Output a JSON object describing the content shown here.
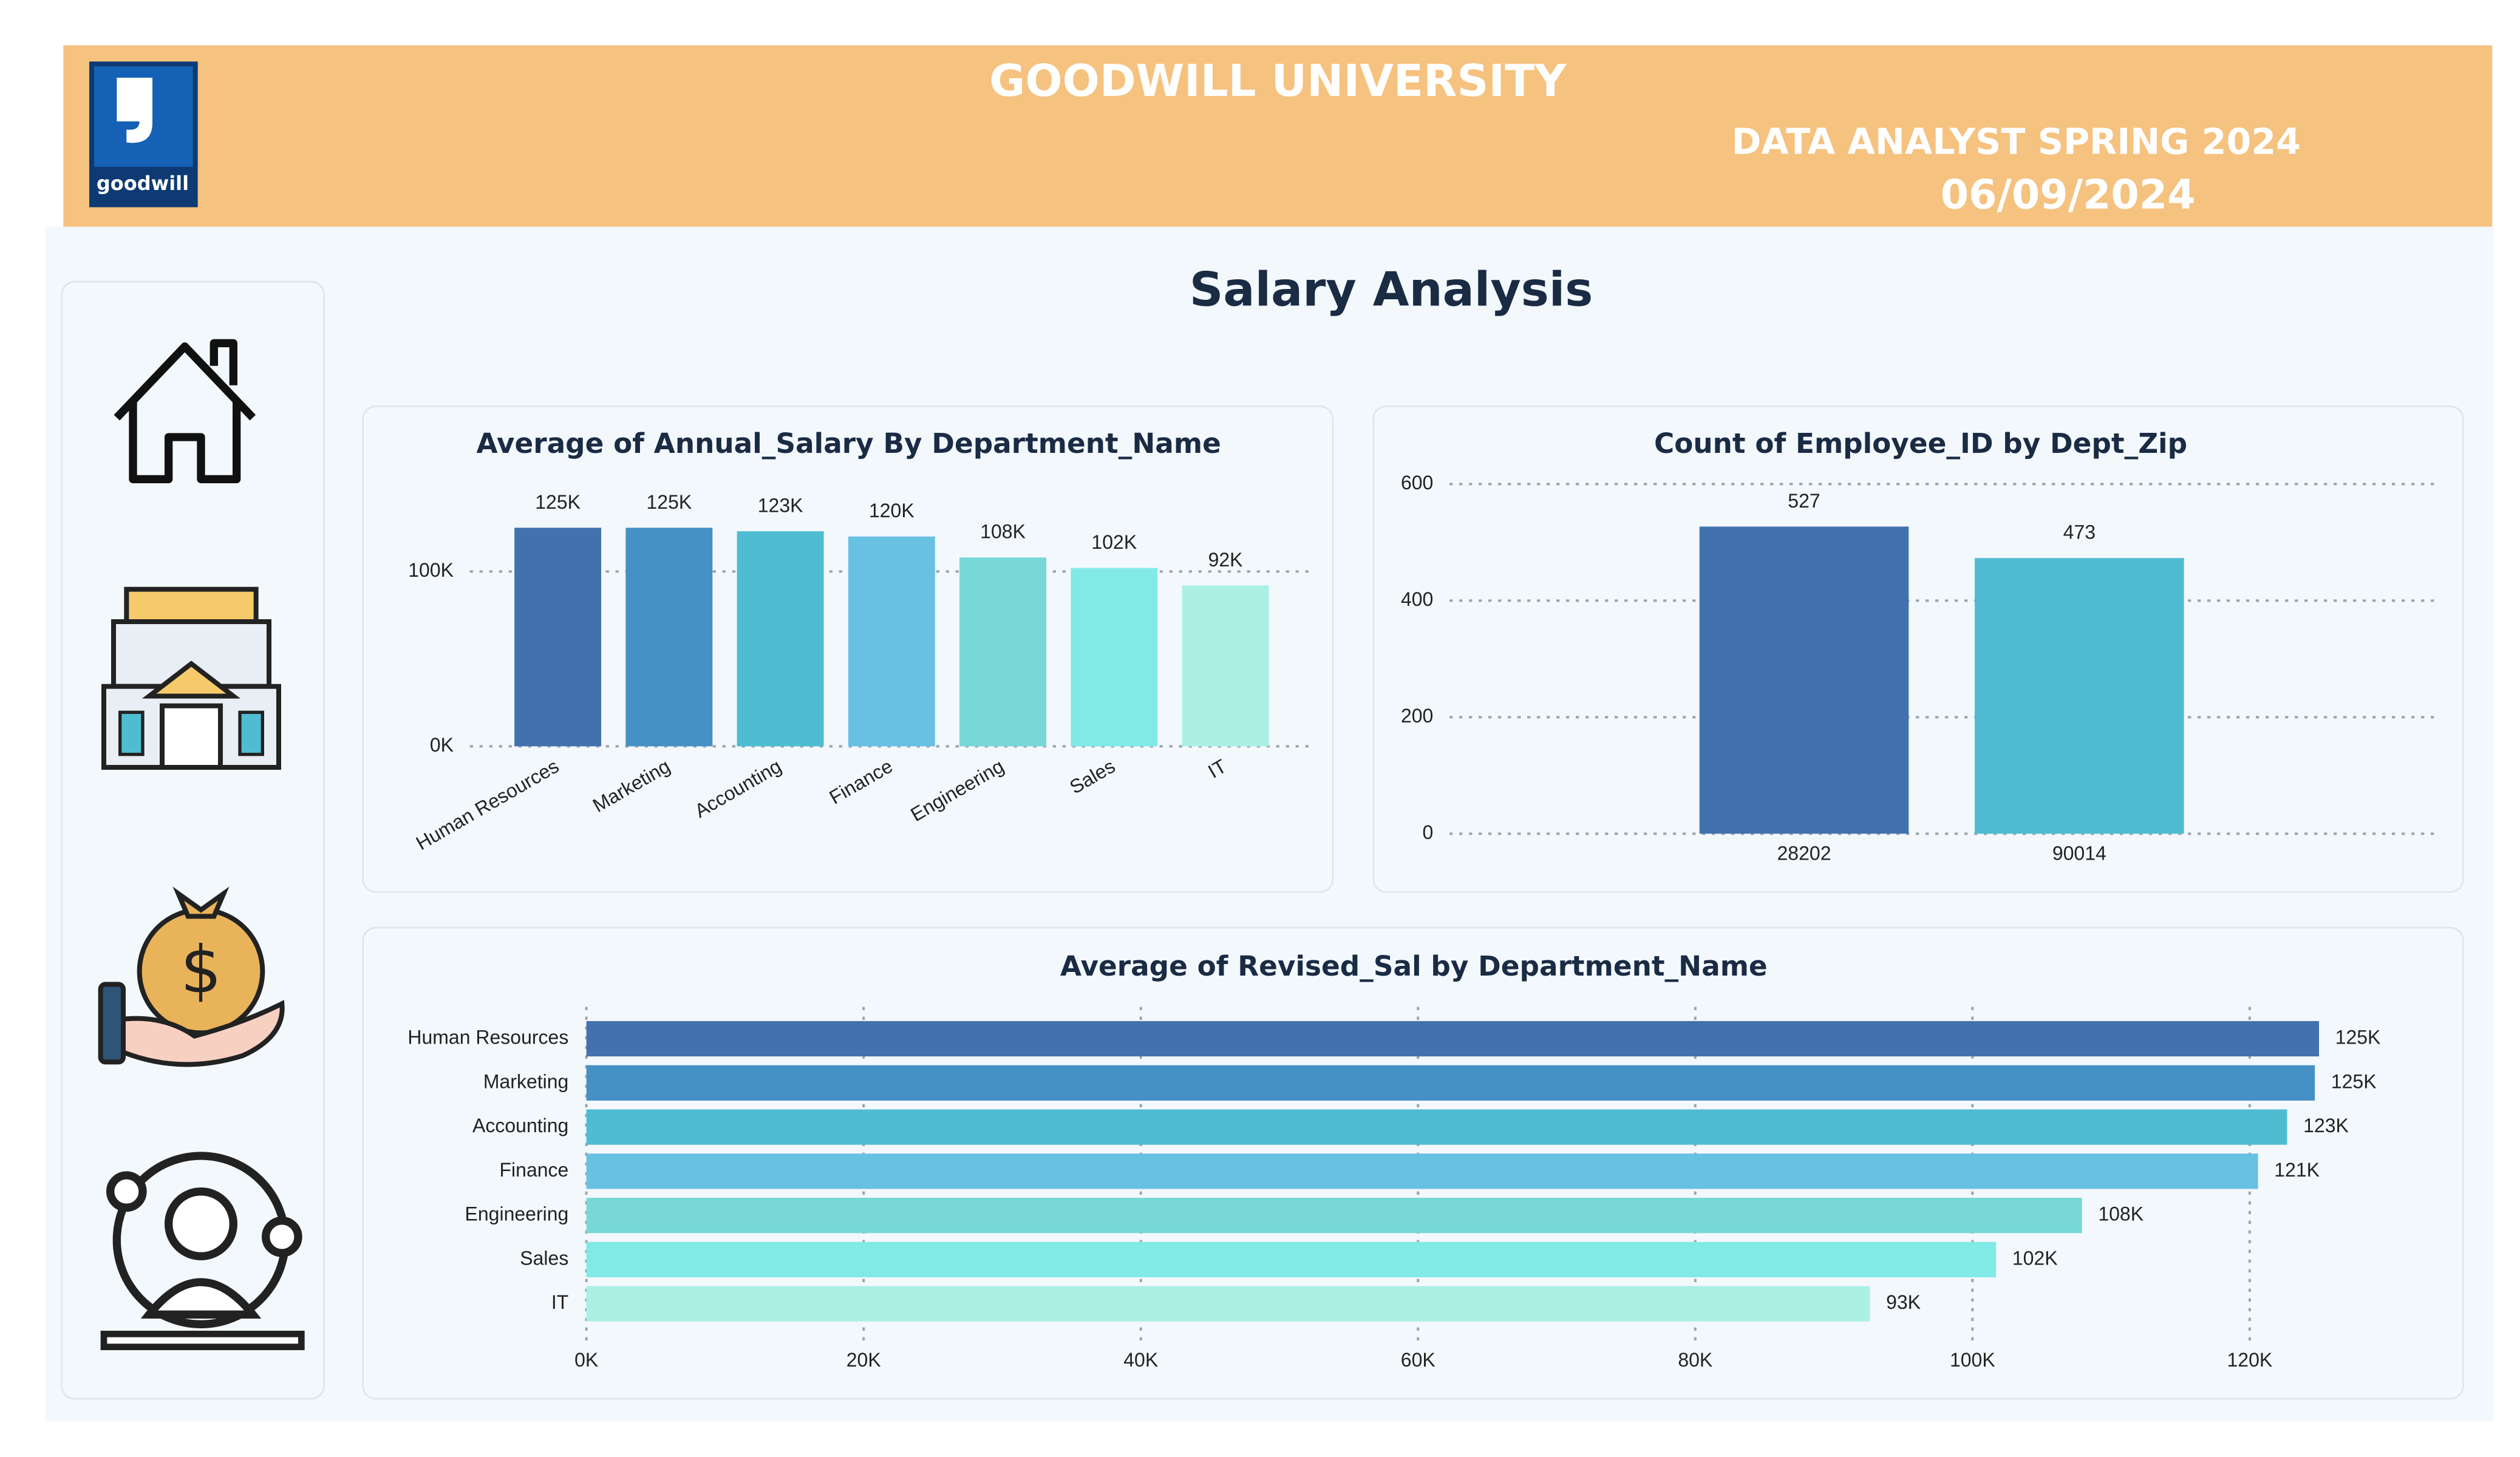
{
  "header": {
    "logo_text": "goodwill",
    "title": "GOODWILL UNIVERSITY",
    "subtitle": "DATA ANALYST SPRING 2024",
    "date": "06/09/2024"
  },
  "page_title": "Salary Analysis",
  "chart_data": [
    {
      "type": "bar",
      "title": "Average of Annual_Salary By Department_Name",
      "categories": [
        "Human Resources",
        "Marketing",
        "Accounting",
        "Finance",
        "Engineering",
        "Sales",
        "IT"
      ],
      "values": [
        125000,
        125000,
        123000,
        120000,
        108000,
        102000,
        92000
      ],
      "value_labels": [
        "125K",
        "125K",
        "123K",
        "120K",
        "108K",
        "102K",
        "92K"
      ],
      "colors": [
        "#4271ae",
        "#4590c5",
        "#4fbcd1",
        "#68c0e3",
        "#77d8d6",
        "#81e9e6",
        "#aaf0e5"
      ],
      "ylim": [
        0,
        150000
      ],
      "yticks": [
        {
          "value": 0,
          "label": "0K"
        },
        {
          "value": 100000,
          "label": "100K"
        }
      ],
      "grid": true
    },
    {
      "type": "bar",
      "title": "Count of Employee_ID by Dept_Zip",
      "categories": [
        "28202",
        "90014"
      ],
      "values": [
        527,
        473
      ],
      "colors": [
        "#4271ae",
        "#4fbcd1"
      ],
      "ylim": [
        0,
        600
      ],
      "yticks": [
        0,
        200,
        400,
        600
      ],
      "grid": true
    },
    {
      "type": "hbar",
      "title": "Average of Revised_Sal by Department_Name",
      "categories": [
        "Human Resources",
        "Marketing",
        "Accounting",
        "Finance",
        "Engineering",
        "Sales",
        "IT"
      ],
      "values": [
        125000,
        124700,
        122700,
        120600,
        107900,
        101700,
        92600
      ],
      "value_labels": [
        "125K",
        "125K",
        "123K",
        "121K",
        "108K",
        "102K",
        "93K"
      ],
      "colors": [
        "#4271ae",
        "#4590c5",
        "#4fbcd1",
        "#68c0e3",
        "#77d8d6",
        "#81e9e6",
        "#aaf0e5"
      ],
      "xlim": [
        0,
        125000
      ],
      "xticks": [
        {
          "value": 0,
          "label": "0K"
        },
        {
          "value": 20000,
          "label": "20K"
        },
        {
          "value": 40000,
          "label": "40K"
        },
        {
          "value": 60000,
          "label": "60K"
        },
        {
          "value": 80000,
          "label": "80K"
        },
        {
          "value": 100000,
          "label": "100K"
        },
        {
          "value": 120000,
          "label": "120K"
        }
      ],
      "grid": true
    }
  ]
}
